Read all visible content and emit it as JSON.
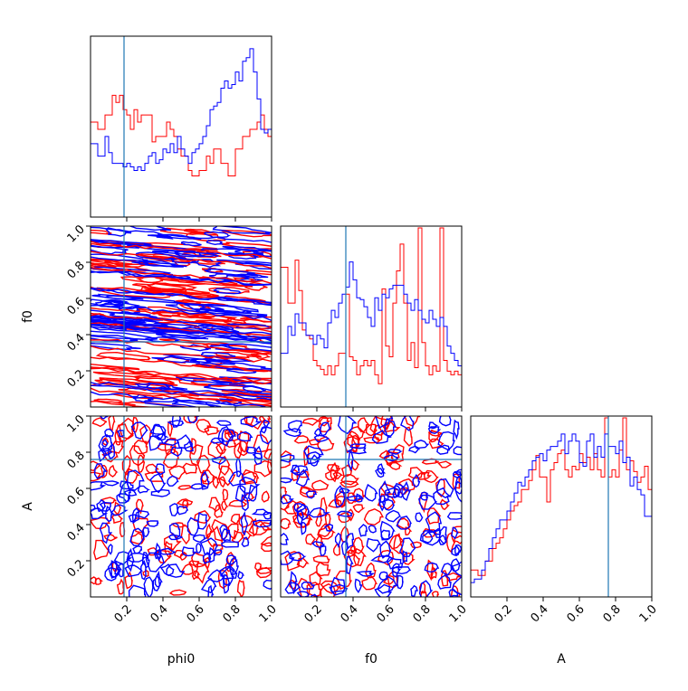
{
  "chart_data": {
    "type": "corner",
    "params": [
      "phi0",
      "f0",
      "A"
    ],
    "labels": {
      "phi0": "phi0",
      "f0": "f0",
      "A": "A"
    },
    "range": [
      0,
      1
    ],
    "ticks": [
      "0.2",
      "0.4",
      "0.6",
      "0.8",
      "1.0"
    ],
    "tick_values": [
      0.2,
      0.4,
      0.6,
      0.8,
      1.0
    ],
    "truths": {
      "phi0": 0.185,
      "f0": 0.36,
      "A": 0.76
    },
    "colors": {
      "series_a": "#ff0000",
      "series_b": "#0000ff",
      "truth": "#1f77b4"
    },
    "histograms": {
      "phi0": {
        "series_a": [
          0.53,
          0.53,
          0.49,
          0.49,
          0.57,
          0.57,
          0.68,
          0.64,
          0.68,
          0.6,
          0.57,
          0.49,
          0.6,
          0.53,
          0.57,
          0.57,
          0.57,
          0.42,
          0.45,
          0.45,
          0.45,
          0.53,
          0.49,
          0.45,
          0.38,
          0.34,
          0.34,
          0.26,
          0.23,
          0.23,
          0.26,
          0.26,
          0.34,
          0.3,
          0.38,
          0.38,
          0.3,
          0.3,
          0.23,
          0.23,
          0.38,
          0.38,
          0.45,
          0.45,
          0.49,
          0.49,
          0.53,
          0.57,
          0.49,
          0.45
        ],
        "series_b": [
          0.41,
          0.41,
          0.34,
          0.34,
          0.45,
          0.36,
          0.3,
          0.3,
          0.3,
          0.28,
          0.3,
          0.28,
          0.26,
          0.28,
          0.26,
          0.3,
          0.34,
          0.36,
          0.3,
          0.32,
          0.38,
          0.36,
          0.41,
          0.36,
          0.45,
          0.38,
          0.34,
          0.3,
          0.36,
          0.38,
          0.41,
          0.45,
          0.51,
          0.6,
          0.62,
          0.64,
          0.72,
          0.76,
          0.72,
          0.74,
          0.81,
          0.76,
          0.87,
          0.89,
          0.94,
          0.81,
          0.66,
          0.49,
          0.47,
          0.49
        ]
      },
      "f0": {
        "series_a": [
          0.78,
          0.78,
          0.58,
          0.58,
          0.82,
          0.65,
          0.43,
          0.4,
          0.38,
          0.26,
          0.23,
          0.21,
          0.18,
          0.23,
          0.18,
          0.23,
          0.3,
          0.3,
          0.63,
          0.28,
          0.26,
          0.18,
          0.23,
          0.26,
          0.23,
          0.26,
          0.18,
          0.13,
          0.66,
          0.34,
          0.28,
          0.58,
          0.76,
          0.91,
          0.58,
          0.26,
          0.36,
          0.22,
          1.0,
          0.36,
          0.23,
          0.18,
          0.23,
          0.2,
          1.0,
          0.26,
          0.2,
          0.18,
          0.2,
          0.18
        ],
        "series_b": [
          0.3,
          0.3,
          0.45,
          0.4,
          0.52,
          0.47,
          0.47,
          0.4,
          0.4,
          0.35,
          0.4,
          0.38,
          0.33,
          0.47,
          0.54,
          0.5,
          0.58,
          0.63,
          0.67,
          0.81,
          0.71,
          0.61,
          0.6,
          0.56,
          0.5,
          0.45,
          0.61,
          0.54,
          0.63,
          0.61,
          0.66,
          0.68,
          0.68,
          0.68,
          0.63,
          0.58,
          0.54,
          0.6,
          0.54,
          0.49,
          0.47,
          0.54,
          0.49,
          0.45,
          0.5,
          0.45,
          0.34,
          0.3,
          0.26,
          0.23
        ]
      },
      "A": {
        "series_a": [
          0.15,
          0.15,
          0.12,
          0.12,
          0.2,
          0.2,
          0.27,
          0.3,
          0.33,
          0.38,
          0.43,
          0.48,
          0.51,
          0.53,
          0.6,
          0.6,
          0.65,
          0.71,
          0.79,
          0.67,
          0.67,
          0.53,
          0.71,
          0.75,
          0.8,
          0.82,
          0.71,
          0.67,
          0.73,
          0.71,
          0.8,
          0.75,
          0.78,
          0.71,
          0.8,
          0.71,
          0.67,
          1.0,
          0.67,
          0.71,
          0.67,
          0.82,
          1.0,
          0.71,
          0.76,
          0.7,
          0.64,
          0.67,
          0.73,
          0.6
        ],
        "series_b": [
          0.08,
          0.1,
          0.1,
          0.15,
          0.2,
          0.27,
          0.33,
          0.38,
          0.43,
          0.43,
          0.48,
          0.53,
          0.58,
          0.64,
          0.62,
          0.67,
          0.71,
          0.76,
          0.78,
          0.8,
          0.76,
          0.82,
          0.84,
          0.84,
          0.87,
          0.91,
          0.8,
          0.87,
          0.91,
          0.87,
          0.75,
          0.73,
          0.87,
          0.91,
          0.78,
          0.84,
          0.78,
          0.91,
          0.84,
          0.84,
          0.8,
          0.87,
          0.75,
          0.78,
          0.62,
          0.67,
          0.6,
          0.57,
          0.45,
          0.45
        ]
      }
    },
    "contours": {
      "f0_vs_phi0": {
        "x": "phi0",
        "y": "f0",
        "pattern": "banded",
        "spread_y": 0.012,
        "count_per_series": 85
      },
      "A_vs_phi0": {
        "x": "phi0",
        "y": "A",
        "pattern": "scattered",
        "count_per_series": 120
      },
      "A_vs_f0": {
        "x": "f0",
        "y": "A",
        "pattern": "scattered",
        "count_per_series": 120
      }
    }
  }
}
